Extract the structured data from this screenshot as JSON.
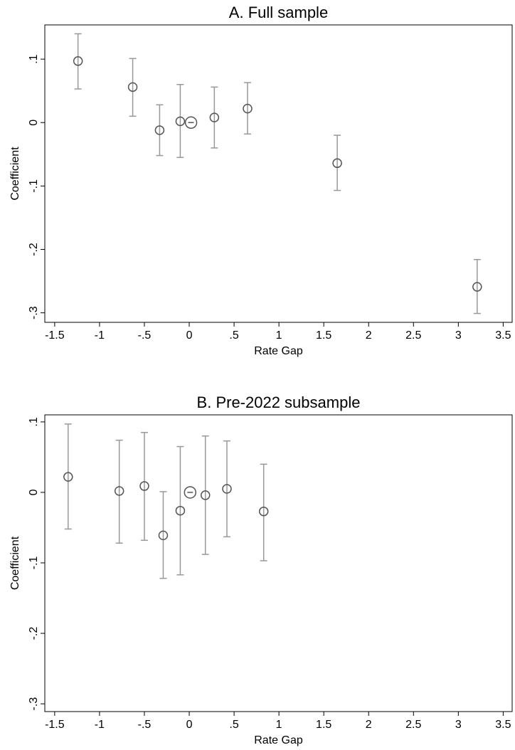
{
  "chart_data": [
    {
      "type": "scatter",
      "title": "A. Full sample",
      "x_label": "Rate Gap",
      "y_label": "Coefficient",
      "x": [
        -1.24,
        -0.63,
        -0.33,
        -0.1,
        0.28,
        0.65,
        1.65,
        3.21
      ],
      "values": [
        0.097,
        0.056,
        -0.012,
        0.002,
        0.008,
        0.022,
        -0.064,
        -0.259
      ],
      "ci_low": [
        0.053,
        0.01,
        -0.052,
        -0.055,
        -0.04,
        -0.018,
        -0.107,
        -0.301
      ],
      "ci_high": [
        0.14,
        0.101,
        0.028,
        0.06,
        0.056,
        0.063,
        -0.02,
        -0.216
      ],
      "base_point": {
        "x": 0.02,
        "y": 0
      },
      "color": "#555555",
      "error_color": "#999999",
      "xlim": [
        -1.61,
        3.6
      ],
      "ylim": [
        -0.315,
        0.154
      ],
      "xticks": [
        -1.5,
        -1,
        {
          "value": -0.5,
          "label": "-.5"
        },
        0,
        {
          "value": 0.5,
          "label": ".5"
        },
        1,
        1.5,
        2,
        2.5,
        3,
        3.5
      ],
      "yticks": [
        {
          "value": 0.1,
          "label": ".1"
        },
        0,
        {
          "value": -0.1,
          "label": "-.1"
        },
        {
          "value": -0.2,
          "label": "-.2"
        },
        {
          "value": -0.3,
          "label": "-.3"
        }
      ]
    },
    {
      "type": "scatter",
      "title": "B. Pre-2022 subsample",
      "x_label": "Rate Gap",
      "y_label": "Coefficient",
      "x": [
        -1.35,
        -0.78,
        -0.5,
        -0.29,
        -0.1,
        0.18,
        0.42,
        0.83
      ],
      "values": [
        0.022,
        0.002,
        0.009,
        -0.061,
        -0.026,
        -0.004,
        0.005,
        -0.027
      ],
      "ci_low": [
        -0.052,
        -0.072,
        -0.068,
        -0.122,
        -0.117,
        -0.088,
        -0.063,
        -0.097
      ],
      "ci_high": [
        0.097,
        0.074,
        0.085,
        0.001,
        0.065,
        0.08,
        0.073,
        0.04
      ],
      "base_point": {
        "x": 0.01,
        "y": 0
      },
      "color": "#555555",
      "error_color": "#999999",
      "xlim": [
        -1.61,
        3.6
      ],
      "ylim": [
        -0.311,
        0.11
      ],
      "xticks": [
        -1.5,
        -1,
        {
          "value": -0.5,
          "label": "-.5"
        },
        0,
        {
          "value": 0.5,
          "label": ".5"
        },
        1,
        1.5,
        2,
        2.5,
        3,
        3.5
      ],
      "yticks": [
        {
          "value": 0.1,
          "label": ".1"
        },
        0,
        {
          "value": -0.1,
          "label": "-.1"
        },
        {
          "value": -0.2,
          "label": "-.2"
        },
        {
          "value": -0.3,
          "label": "-.3"
        }
      ]
    }
  ]
}
